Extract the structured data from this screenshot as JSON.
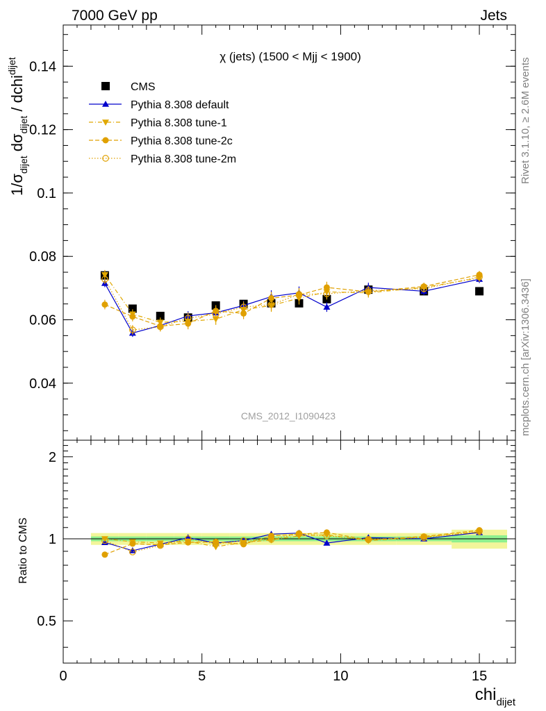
{
  "header": {
    "left": "7000 GeV pp",
    "right": "Jets"
  },
  "side_labels": {
    "rivet": "Rivet 3.1.10, ≥ 2.6M events",
    "mcplots": "mcplots.cern.ch [arXiv:1306.3436]"
  },
  "chart_data": [
    {
      "type": "scatter",
      "title": "χ (jets) (1500 < Mjj < 1900)",
      "watermark": "CMS_2012_I1090423",
      "ylabel_parts": {
        "a": "1/σ",
        "a_sub": "dijet",
        "b": " dσ",
        "b_sub": "dijet",
        "c": " / dchi",
        "c_sub": "dijet"
      },
      "xlim": [
        0,
        16.3
      ],
      "ylim": [
        0.022,
        0.153
      ],
      "yticks": [
        0.04,
        0.06,
        0.08,
        0.1,
        0.12,
        0.14
      ],
      "ytick_labels": [
        "0.04",
        "0.06",
        "0.08",
        "0.1",
        "0.12",
        "0.14"
      ],
      "legend_position": "top-left",
      "series": [
        {
          "name": "CMS",
          "color": "#000000",
          "marker": "square",
          "line": "none",
          "x": [
            1.5,
            2.5,
            3.5,
            4.5,
            5.5,
            6.5,
            7.5,
            8.5,
            9.5,
            11,
            13,
            15
          ],
          "y": [
            0.074,
            0.0635,
            0.0612,
            0.0607,
            0.0645,
            0.065,
            0.0652,
            0.0652,
            0.0665,
            0.0695,
            0.069,
            0.069
          ]
        },
        {
          "name": "Pythia 8.308 default",
          "color": "#0000cc",
          "marker": "triangle-up",
          "line": "solid",
          "x": [
            1.5,
            2.5,
            3.5,
            4.5,
            5.5,
            6.5,
            7.5,
            8.5,
            9.5,
            11,
            13,
            15
          ],
          "y": [
            0.0715,
            0.0558,
            0.0582,
            0.0612,
            0.0622,
            0.0645,
            0.0673,
            0.0685,
            0.064,
            0.0702,
            0.069,
            0.0728
          ],
          "err": [
            0.0012,
            0.0012,
            0.0012,
            0.0015,
            0.0015,
            0.0015,
            0.002,
            0.002,
            0.0015,
            0.0015,
            0.0012,
            0.0012
          ]
        },
        {
          "name": "Pythia 8.308 tune-1",
          "color": "#e0a800",
          "marker": "triangle-down",
          "line": "dashdot",
          "x": [
            1.5,
            2.5,
            3.5,
            4.5,
            5.5,
            6.5,
            7.5,
            8.5,
            9.5,
            11,
            13,
            15
          ],
          "y": [
            0.0742,
            0.0618,
            0.0592,
            0.0595,
            0.0602,
            0.0632,
            0.0645,
            0.0668,
            0.0688,
            0.0685,
            0.0702,
            0.0732
          ],
          "err": [
            0.0015,
            0.0015,
            0.0015,
            0.0018,
            0.0018,
            0.0018,
            0.002,
            0.002,
            0.0018,
            0.0015,
            0.0012,
            0.0012
          ]
        },
        {
          "name": "Pythia 8.308 tune-2c",
          "color": "#e0a000",
          "marker": "circle",
          "line": "dashed",
          "x": [
            1.5,
            2.5,
            3.5,
            4.5,
            5.5,
            6.5,
            7.5,
            8.5,
            9.5,
            11,
            13,
            15
          ],
          "y": [
            0.0648,
            0.061,
            0.058,
            0.0588,
            0.0628,
            0.062,
            0.0668,
            0.0678,
            0.0702,
            0.0688,
            0.0705,
            0.0742
          ],
          "err": [
            0.0015,
            0.0015,
            0.0015,
            0.0018,
            0.0018,
            0.0018,
            0.002,
            0.002,
            0.0018,
            0.0015,
            0.0012,
            0.0012
          ]
        },
        {
          "name": "Pythia 8.308 tune-2m",
          "color": "#e0a000",
          "marker": "circle-open",
          "line": "dotted",
          "x": [
            1.5,
            2.5,
            3.5,
            4.5,
            5.5,
            6.5,
            7.5,
            8.5,
            9.5,
            11,
            13,
            15
          ],
          "y": [
            0.0728,
            0.0568,
            0.0578,
            0.0605,
            0.0618,
            0.064,
            0.0648,
            0.068,
            0.0682,
            0.0692,
            0.0698,
            0.0735
          ],
          "err": [
            0.0015,
            0.0015,
            0.0015,
            0.0018,
            0.0018,
            0.0018,
            0.002,
            0.002,
            0.0018,
            0.0015,
            0.0012,
            0.0012
          ]
        }
      ]
    },
    {
      "type": "scatter",
      "ylabel": "Ratio to CMS",
      "xlabel_parts": {
        "main": "chi",
        "sub": "dijet"
      },
      "xlim": [
        0,
        16.3
      ],
      "ylim": [
        0.35,
        2.3
      ],
      "ylog": true,
      "yticks": [
        0.5,
        1,
        2
      ],
      "ytick_labels": [
        "0.5",
        "1",
        "2"
      ],
      "xticks": [
        0,
        5,
        10,
        15
      ],
      "xtick_labels": [
        "0",
        "5",
        "10",
        "15"
      ],
      "reference_line": 1,
      "uncertainty_bands": [
        {
          "color": "#f2f59a",
          "bins": [
            [
              1,
              2,
              0.05
            ],
            [
              2,
              3,
              0.05
            ],
            [
              3,
              4,
              0.05
            ],
            [
              4,
              5,
              0.05
            ],
            [
              5,
              6,
              0.05
            ],
            [
              6,
              7,
              0.05
            ],
            [
              7,
              8,
              0.05
            ],
            [
              8,
              9,
              0.05
            ],
            [
              9,
              10,
              0.05
            ],
            [
              10,
              12,
              0.05
            ],
            [
              12,
              14,
              0.05
            ],
            [
              14,
              16,
              0.08
            ]
          ]
        },
        {
          "color": "#8ef08e",
          "bins": [
            [
              1,
              2,
              0.02
            ],
            [
              2,
              3,
              0.02
            ],
            [
              3,
              4,
              0.02
            ],
            [
              4,
              5,
              0.02
            ],
            [
              5,
              6,
              0.02
            ],
            [
              6,
              7,
              0.02
            ],
            [
              7,
              8,
              0.02
            ],
            [
              8,
              9,
              0.02
            ],
            [
              9,
              10,
              0.02
            ],
            [
              10,
              12,
              0.02
            ],
            [
              12,
              14,
              0.02
            ],
            [
              14,
              16,
              0.03
            ]
          ]
        }
      ],
      "series": [
        {
          "name": "Pythia 8.308 default",
          "color": "#0000cc",
          "marker": "triangle-up",
          "line": "solid",
          "x": [
            1.5,
            2.5,
            3.5,
            4.5,
            5.5,
            6.5,
            7.5,
            8.5,
            9.5,
            11,
            13,
            15
          ],
          "y": [
            0.97,
            0.905,
            0.955,
            1.01,
            0.965,
            0.985,
            1.04,
            1.05,
            0.965,
            1.01,
            1.0,
            1.055
          ]
        },
        {
          "name": "Pythia 8.308 tune-1",
          "color": "#e0a800",
          "marker": "triangle-down",
          "line": "dashdot",
          "x": [
            1.5,
            2.5,
            3.5,
            4.5,
            5.5,
            6.5,
            7.5,
            8.5,
            9.5,
            11,
            13,
            15
          ],
          "y": [
            1.0,
            0.975,
            0.965,
            0.98,
            0.935,
            0.97,
            0.99,
            1.025,
            1.035,
            0.985,
            1.015,
            1.06
          ]
        },
        {
          "name": "Pythia 8.308 tune-2c",
          "color": "#e0a000",
          "marker": "circle",
          "line": "dashed",
          "x": [
            1.5,
            2.5,
            3.5,
            4.5,
            5.5,
            6.5,
            7.5,
            8.5,
            9.5,
            11,
            13,
            15
          ],
          "y": [
            0.875,
            0.96,
            0.95,
            0.97,
            0.975,
            0.955,
            1.025,
            1.04,
            1.055,
            0.99,
            1.02,
            1.075
          ]
        },
        {
          "name": "Pythia 8.308 tune-2m",
          "color": "#e0a000",
          "marker": "circle-open",
          "line": "dotted",
          "x": [
            1.5,
            2.5,
            3.5,
            4.5,
            5.5,
            6.5,
            7.5,
            8.5,
            9.5,
            11,
            13,
            15
          ],
          "y": [
            0.985,
            0.895,
            0.945,
            1.0,
            0.958,
            0.985,
            0.995,
            1.045,
            1.025,
            0.995,
            1.01,
            1.065
          ]
        }
      ]
    }
  ]
}
